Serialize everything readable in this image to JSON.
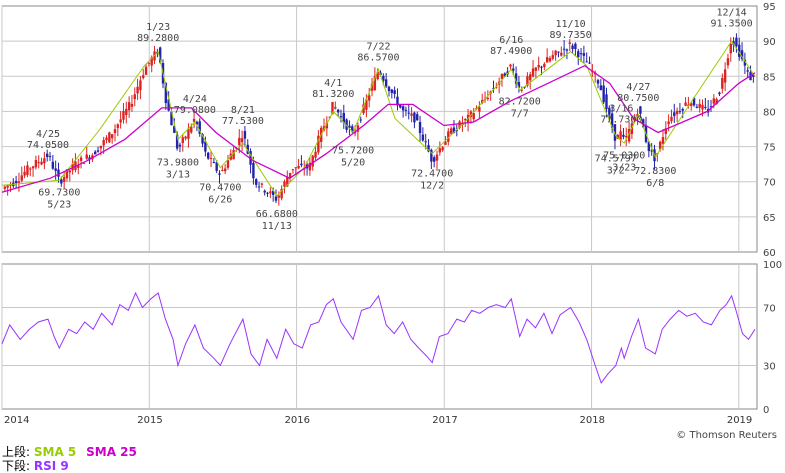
{
  "chart_data": [
    {
      "panel": "upper",
      "type": "candlestick",
      "x_range": [
        "2014-01-01",
        "2019-02-15"
      ],
      "ylim": [
        60,
        95
      ],
      "y_ticks": [
        60,
        65,
        70,
        75,
        80,
        85,
        90,
        95
      ],
      "grid": true,
      "series": [
        {
          "name": "SMA 5",
          "color": "#99cc00",
          "points": [
            [
              "2014-01-01",
              69.5
            ],
            [
              "2014-05-23",
              70.2
            ],
            [
              "2014-09-01",
              77.5
            ],
            [
              "2014-12-20",
              86.5
            ],
            [
              "2015-01-23",
              88.5
            ],
            [
              "2015-03-13",
              76
            ],
            [
              "2015-04-24",
              78.5
            ],
            [
              "2015-06-26",
              72
            ],
            [
              "2015-08-21",
              75.5
            ],
            [
              "2015-11-13",
              68
            ],
            [
              "2016-01-20",
              72
            ],
            [
              "2016-04-01",
              80
            ],
            [
              "2016-05-20",
              77
            ],
            [
              "2016-07-22",
              86
            ],
            [
              "2016-09-01",
              79
            ],
            [
              "2016-12-02",
              74
            ],
            [
              "2017-03-01",
              79
            ],
            [
              "2017-06-16",
              86
            ],
            [
              "2017-07-07",
              83
            ],
            [
              "2017-11-10",
              88.5
            ],
            [
              "2017-12-20",
              86.5
            ],
            [
              "2018-03-02",
              76.5
            ],
            [
              "2018-03-23",
              75.5
            ],
            [
              "2018-04-27",
              79.5
            ],
            [
              "2018-06-08",
              73.5
            ],
            [
              "2018-09-01",
              81
            ],
            [
              "2018-12-14",
              90
            ],
            [
              "2019-02-10",
              85
            ]
          ]
        },
        {
          "name": "SMA 25",
          "color": "#cc00cc",
          "points": [
            [
              "2014-01-01",
              68.5
            ],
            [
              "2014-05-01",
              70.5
            ],
            [
              "2014-08-01",
              73
            ],
            [
              "2014-11-01",
              76
            ],
            [
              "2015-02-01",
              80.5
            ],
            [
              "2015-04-15",
              80.5
            ],
            [
              "2015-06-15",
              77
            ],
            [
              "2015-09-15",
              73
            ],
            [
              "2015-12-15",
              70.5
            ],
            [
              "2016-03-15",
              74
            ],
            [
              "2016-06-15",
              78
            ],
            [
              "2016-08-15",
              81
            ],
            [
              "2016-10-15",
              81
            ],
            [
              "2016-12-31",
              78
            ],
            [
              "2017-03-15",
              78.5
            ],
            [
              "2017-06-15",
              81.5
            ],
            [
              "2017-09-15",
              84
            ],
            [
              "2017-12-15",
              86.5
            ],
            [
              "2018-02-15",
              84
            ],
            [
              "2018-04-15",
              79
            ],
            [
              "2018-06-15",
              77
            ],
            [
              "2018-08-15",
              78.5
            ],
            [
              "2018-10-15",
              80
            ],
            [
              "2019-01-01",
              84
            ],
            [
              "2019-02-10",
              85.5
            ]
          ]
        }
      ],
      "annotations": [
        {
          "date": "2014-04-25",
          "value": 74.05,
          "date_label": "4/25",
          "value_label": "74.0500",
          "pos": "above"
        },
        {
          "date": "2014-05-23",
          "value": 69.73,
          "date_label": "5/23",
          "value_label": "69.7300",
          "pos": "below"
        },
        {
          "date": "2015-01-23",
          "value": 89.28,
          "date_label": "1/23",
          "value_label": "89.2800",
          "pos": "above"
        },
        {
          "date": "2015-03-13",
          "value": 73.98,
          "date_label": "3/13",
          "value_label": "73.9800",
          "pos": "below"
        },
        {
          "date": "2015-04-24",
          "value": 79.08,
          "date_label": "4/24",
          "value_label": "79.0800",
          "pos": "above"
        },
        {
          "date": "2015-06-26",
          "value": 70.47,
          "date_label": "6/26",
          "value_label": "70.4700",
          "pos": "below"
        },
        {
          "date": "2015-08-21",
          "value": 77.53,
          "date_label": "8/21",
          "value_label": "77.5300",
          "pos": "above"
        },
        {
          "date": "2015-11-13",
          "value": 66.68,
          "date_label": "11/13",
          "value_label": "66.6800",
          "pos": "below"
        },
        {
          "date": "2016-04-01",
          "value": 81.32,
          "date_label": "4/1",
          "value_label": "81.3200",
          "pos": "above"
        },
        {
          "date": "2016-05-20",
          "value": 75.72,
          "date_label": "5/20",
          "value_label": "75.7200",
          "pos": "below"
        },
        {
          "date": "2016-07-22",
          "value": 86.57,
          "date_label": "7/22",
          "value_label": "86.5700",
          "pos": "above"
        },
        {
          "date": "2016-12-02",
          "value": 72.47,
          "date_label": "12/2",
          "value_label": "72.4700",
          "pos": "below"
        },
        {
          "date": "2017-06-16",
          "value": 87.49,
          "date_label": "6/16",
          "value_label": "87.4900",
          "pos": "above"
        },
        {
          "date": "2017-07-07",
          "value": 82.72,
          "date_label": "7/7",
          "value_label": "82.7200",
          "pos": "below"
        },
        {
          "date": "2017-11-10",
          "value": 89.735,
          "date_label": "11/10",
          "value_label": "89.7350",
          "pos": "above"
        },
        {
          "date": "2018-03-02",
          "value": 74.5797,
          "date_label": "3/2",
          "value_label": "74.5797",
          "pos": "below"
        },
        {
          "date": "2018-03-16",
          "value": 77.73,
          "date_label": "3/16",
          "value_label": "77.7300",
          "pos": "above"
        },
        {
          "date": "2018-03-23",
          "value": 75.03,
          "date_label": "3/23",
          "value_label": "75.0300",
          "pos": "below"
        },
        {
          "date": "2018-04-27",
          "value": 80.75,
          "date_label": "4/27",
          "value_label": "80.7500",
          "pos": "above"
        },
        {
          "date": "2018-06-08",
          "value": 72.83,
          "date_label": "6/8",
          "value_label": "72.8300",
          "pos": "below"
        },
        {
          "date": "2018-12-14",
          "value": 91.35,
          "date_label": "12/14",
          "value_label": "91.3500",
          "pos": "above"
        }
      ],
      "price_path": [
        [
          "2014-01-01",
          69
        ],
        [
          "2014-02-01",
          70
        ],
        [
          "2014-03-10",
          72
        ],
        [
          "2014-04-25",
          73.8
        ],
        [
          "2014-05-23",
          70
        ],
        [
          "2014-07-01",
          72.5
        ],
        [
          "2014-08-15",
          74
        ],
        [
          "2014-10-01",
          77
        ],
        [
          "2014-11-15",
          81
        ],
        [
          "2014-12-20",
          86
        ],
        [
          "2015-01-23",
          88.8
        ],
        [
          "2015-02-10",
          82
        ],
        [
          "2015-03-13",
          74.5
        ],
        [
          "2015-04-24",
          79
        ],
        [
          "2015-05-20",
          74
        ],
        [
          "2015-06-26",
          71
        ],
        [
          "2015-08-21",
          77
        ],
        [
          "2015-09-20",
          70
        ],
        [
          "2015-11-13",
          67.5
        ],
        [
          "2015-12-20",
          72
        ],
        [
          "2016-02-01",
          72
        ],
        [
          "2016-03-01",
          77
        ],
        [
          "2016-04-01",
          81
        ],
        [
          "2016-05-20",
          76.5
        ],
        [
          "2016-07-22",
          86
        ],
        [
          "2016-08-20",
          83
        ],
        [
          "2016-09-20",
          80
        ],
        [
          "2016-10-20",
          79
        ],
        [
          "2016-12-02",
          73
        ],
        [
          "2017-01-15",
          77
        ],
        [
          "2017-03-01",
          79
        ],
        [
          "2017-04-15",
          82
        ],
        [
          "2017-06-16",
          86.5
        ],
        [
          "2017-07-07",
          83
        ],
        [
          "2017-08-15",
          86
        ],
        [
          "2017-10-01",
          88
        ],
        [
          "2017-11-10",
          89.5
        ],
        [
          "2017-12-20",
          87
        ],
        [
          "2018-01-20",
          84
        ],
        [
          "2018-03-02",
          76
        ],
        [
          "2018-03-16",
          77
        ],
        [
          "2018-03-23",
          75.5
        ],
        [
          "2018-04-27",
          80.5
        ],
        [
          "2018-05-20",
          75
        ],
        [
          "2018-06-08",
          73.2
        ],
        [
          "2018-07-10",
          79
        ],
        [
          "2018-09-01",
          81.5
        ],
        [
          "2018-10-15",
          80
        ],
        [
          "2018-11-15",
          83
        ],
        [
          "2018-12-14",
          90.5
        ],
        [
          "2019-01-05",
          88
        ],
        [
          "2019-01-25",
          85
        ],
        [
          "2019-02-10",
          84.5
        ]
      ]
    },
    {
      "panel": "lower",
      "type": "line",
      "ylim": [
        0,
        100
      ],
      "y_ticks": [
        0,
        30,
        70,
        100
      ],
      "grid": true,
      "series": [
        {
          "name": "RSI 9",
          "color": "#9933ff",
          "points": [
            [
              "2014-01-01",
              45
            ],
            [
              "2014-01-20",
              58
            ],
            [
              "2014-02-15",
              48
            ],
            [
              "2014-03-10",
              55
            ],
            [
              "2014-04-01",
              60
            ],
            [
              "2014-04-25",
              62
            ],
            [
              "2014-05-10",
              50
            ],
            [
              "2014-05-23",
              42
            ],
            [
              "2014-06-15",
              55
            ],
            [
              "2014-07-05",
              52
            ],
            [
              "2014-07-25",
              60
            ],
            [
              "2014-08-15",
              55
            ],
            [
              "2014-09-05",
              66
            ],
            [
              "2014-10-01",
              58
            ],
            [
              "2014-10-20",
              72
            ],
            [
              "2014-11-10",
              68
            ],
            [
              "2014-11-28",
              80
            ],
            [
              "2014-12-15",
              70
            ],
            [
              "2015-01-05",
              76
            ],
            [
              "2015-01-23",
              80
            ],
            [
              "2015-02-10",
              62
            ],
            [
              "2015-03-01",
              48
            ],
            [
              "2015-03-13",
              30
            ],
            [
              "2015-04-01",
              45
            ],
            [
              "2015-04-24",
              58
            ],
            [
              "2015-05-15",
              42
            ],
            [
              "2015-06-10",
              35
            ],
            [
              "2015-06-26",
              30
            ],
            [
              "2015-07-20",
              45
            ],
            [
              "2015-08-21",
              62
            ],
            [
              "2015-09-10",
              38
            ],
            [
              "2015-10-01",
              30
            ],
            [
              "2015-10-20",
              48
            ],
            [
              "2015-11-13",
              35
            ],
            [
              "2015-12-05",
              55
            ],
            [
              "2015-12-25",
              45
            ],
            [
              "2016-01-15",
              42
            ],
            [
              "2016-02-05",
              58
            ],
            [
              "2016-02-25",
              60
            ],
            [
              "2016-03-15",
              72
            ],
            [
              "2016-04-01",
              76
            ],
            [
              "2016-04-20",
              60
            ],
            [
              "2016-05-20",
              48
            ],
            [
              "2016-06-10",
              68
            ],
            [
              "2016-07-01",
              70
            ],
            [
              "2016-07-22",
              78
            ],
            [
              "2016-08-10",
              58
            ],
            [
              "2016-08-30",
              52
            ],
            [
              "2016-09-20",
              60
            ],
            [
              "2016-10-10",
              48
            ],
            [
              "2016-10-30",
              42
            ],
            [
              "2016-11-20",
              36
            ],
            [
              "2016-12-02",
              32
            ],
            [
              "2016-12-20",
              50
            ],
            [
              "2017-01-10",
              52
            ],
            [
              "2017-02-01",
              62
            ],
            [
              "2017-02-20",
              60
            ],
            [
              "2017-03-10",
              68
            ],
            [
              "2017-03-30",
              66
            ],
            [
              "2017-04-20",
              70
            ],
            [
              "2017-05-10",
              72
            ],
            [
              "2017-06-01",
              70
            ],
            [
              "2017-06-16",
              76
            ],
            [
              "2017-07-07",
              50
            ],
            [
              "2017-07-25",
              62
            ],
            [
              "2017-08-15",
              56
            ],
            [
              "2017-09-05",
              66
            ],
            [
              "2017-09-25",
              52
            ],
            [
              "2017-10-15",
              65
            ],
            [
              "2017-11-10",
              70
            ],
            [
              "2017-12-01",
              60
            ],
            [
              "2017-12-20",
              48
            ],
            [
              "2018-01-10",
              30
            ],
            [
              "2018-01-25",
              18
            ],
            [
              "2018-02-10",
              24
            ],
            [
              "2018-03-02",
              30
            ],
            [
              "2018-03-16",
              42
            ],
            [
              "2018-03-23",
              35
            ],
            [
              "2018-04-10",
              50
            ],
            [
              "2018-04-27",
              62
            ],
            [
              "2018-05-15",
              42
            ],
            [
              "2018-06-08",
              38
            ],
            [
              "2018-06-25",
              55
            ],
            [
              "2018-07-15",
              62
            ],
            [
              "2018-08-05",
              68
            ],
            [
              "2018-08-25",
              64
            ],
            [
              "2018-09-15",
              66
            ],
            [
              "2018-10-05",
              60
            ],
            [
              "2018-10-25",
              58
            ],
            [
              "2018-11-15",
              68
            ],
            [
              "2018-12-01",
              72
            ],
            [
              "2018-12-14",
              78
            ],
            [
              "2018-12-25",
              68
            ],
            [
              "2019-01-10",
              52
            ],
            [
              "2019-01-25",
              48
            ],
            [
              "2019-02-10",
              55
            ]
          ]
        }
      ]
    }
  ],
  "x_axis": {
    "ticks": [
      {
        "date": "2014-01-01",
        "label": "2014"
      },
      {
        "date": "2015-01-01",
        "label": "2015"
      },
      {
        "date": "2016-01-01",
        "label": "2016"
      },
      {
        "date": "2017-01-01",
        "label": "2017"
      },
      {
        "date": "2018-01-01",
        "label": "2018"
      },
      {
        "date": "2019-01-01",
        "label": "2019"
      }
    ]
  },
  "footer": {
    "upper_prefix": "上段:",
    "lower_prefix": "下段:",
    "sma5_label": "SMA 5",
    "sma25_label": "SMA 25",
    "rsi_label": "RSI 9",
    "sma5_color": "#99cc00",
    "sma25_color": "#cc00cc",
    "rsi_color": "#9933ff"
  },
  "credit": "© Thomson Reuters",
  "colors": {
    "up": "#dd2222",
    "down": "#2222aa",
    "grid": "#c8c8c8",
    "frame": "#888888"
  }
}
